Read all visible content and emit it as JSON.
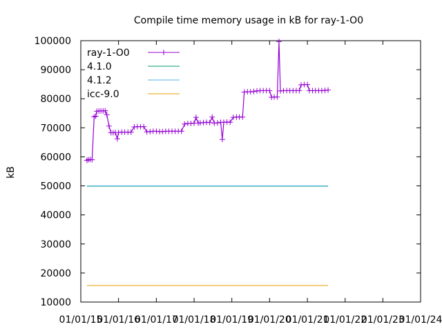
{
  "chart_data": {
    "type": "line",
    "title": "Compile time memory usage in kB for ray-1-O0",
    "xlabel": "",
    "ylabel": "kB",
    "ylim": [
      10000,
      100000
    ],
    "yticks": [
      10000,
      20000,
      30000,
      40000,
      50000,
      60000,
      70000,
      80000,
      90000,
      100000
    ],
    "xlim": [
      "2015-01-01",
      "2024-01-01"
    ],
    "xticks": [
      "01/01/15",
      "01/01/16",
      "01/01/17",
      "01/01/18",
      "01/01/19",
      "01/01/20",
      "01/01/21",
      "01/01/22",
      "01/01/23",
      "01/01/24"
    ],
    "grid": false,
    "legend_position": "top-left",
    "series": [
      {
        "name": "ray-1-O0",
        "color": "#9400d3",
        "marker": "plus",
        "points": [
          [
            "2015-03-01",
            58800
          ],
          [
            "2015-03-15",
            59000
          ],
          [
            "2015-04-01",
            59100
          ],
          [
            "2015-04-20",
            59000
          ],
          [
            "2015-05-10",
            73800
          ],
          [
            "2015-05-25",
            74000
          ],
          [
            "2015-06-05",
            75700
          ],
          [
            "2015-06-25",
            75800
          ],
          [
            "2015-07-15",
            75800
          ],
          [
            "2015-08-05",
            75800
          ],
          [
            "2015-08-25",
            75900
          ],
          [
            "2015-09-10",
            74500
          ],
          [
            "2015-10-01",
            70600
          ],
          [
            "2015-10-20",
            68300
          ],
          [
            "2015-11-10",
            68300
          ],
          [
            "2015-12-01",
            68400
          ],
          [
            "2015-12-20",
            66200
          ],
          [
            "2016-01-01",
            68400
          ],
          [
            "2016-02-01",
            68500
          ],
          [
            "2016-03-01",
            68500
          ],
          [
            "2016-04-01",
            68500
          ],
          [
            "2016-05-01",
            68500
          ],
          [
            "2016-06-01",
            70300
          ],
          [
            "2016-07-01",
            70400
          ],
          [
            "2016-08-01",
            70400
          ],
          [
            "2016-09-01",
            70400
          ],
          [
            "2016-10-01",
            68600
          ],
          [
            "2016-11-01",
            68700
          ],
          [
            "2016-12-01",
            68800
          ],
          [
            "2017-01-01",
            68800
          ],
          [
            "2017-02-01",
            68700
          ],
          [
            "2017-03-01",
            68700
          ],
          [
            "2017-04-01",
            68800
          ],
          [
            "2017-05-01",
            68800
          ],
          [
            "2017-06-01",
            68800
          ],
          [
            "2017-07-01",
            68800
          ],
          [
            "2017-08-01",
            68800
          ],
          [
            "2017-09-01",
            68800
          ],
          [
            "2017-10-01",
            71300
          ],
          [
            "2017-11-01",
            71500
          ],
          [
            "2017-12-01",
            71500
          ],
          [
            "2018-01-01",
            71600
          ],
          [
            "2018-01-20",
            73600
          ],
          [
            "2018-02-10",
            71600
          ],
          [
            "2018-03-01",
            71700
          ],
          [
            "2018-04-01",
            71800
          ],
          [
            "2018-05-01",
            71900
          ],
          [
            "2018-06-01",
            71800
          ],
          [
            "2018-06-25",
            73700
          ],
          [
            "2018-07-15",
            71600
          ],
          [
            "2018-08-15",
            71700
          ],
          [
            "2018-09-15",
            71900
          ],
          [
            "2018-10-01",
            66000
          ],
          [
            "2018-10-15",
            71900
          ],
          [
            "2018-11-15",
            72000
          ],
          [
            "2018-12-15",
            71900
          ],
          [
            "2019-01-15",
            73600
          ],
          [
            "2019-02-15",
            73700
          ],
          [
            "2019-03-15",
            73700
          ],
          [
            "2019-04-15",
            73700
          ],
          [
            "2019-05-01",
            82300
          ],
          [
            "2019-06-01",
            82400
          ],
          [
            "2019-07-01",
            82400
          ],
          [
            "2019-08-01",
            82500
          ],
          [
            "2019-09-01",
            82700
          ],
          [
            "2019-10-01",
            82800
          ],
          [
            "2019-11-01",
            82800
          ],
          [
            "2019-12-01",
            82800
          ],
          [
            "2020-01-01",
            82800
          ],
          [
            "2020-01-20",
            80500
          ],
          [
            "2020-02-15",
            80600
          ],
          [
            "2020-03-15",
            80600
          ],
          [
            "2020-04-01",
            99700
          ],
          [
            "2020-04-15",
            82700
          ],
          [
            "2020-05-15",
            82800
          ],
          [
            "2020-06-15",
            82800
          ],
          [
            "2020-07-15",
            82800
          ],
          [
            "2020-08-15",
            82800
          ],
          [
            "2020-09-15",
            82800
          ],
          [
            "2020-10-15",
            82800
          ],
          [
            "2020-11-01",
            84800
          ],
          [
            "2020-12-01",
            84900
          ],
          [
            "2021-01-01",
            84900
          ],
          [
            "2021-01-20",
            82800
          ],
          [
            "2021-02-20",
            82800
          ],
          [
            "2021-03-20",
            82800
          ],
          [
            "2021-04-20",
            82800
          ],
          [
            "2021-05-20",
            82800
          ],
          [
            "2021-06-20",
            82900
          ],
          [
            "2021-07-20",
            83000
          ]
        ]
      },
      {
        "name": "4.1.0",
        "color": "#009e73",
        "marker": "none",
        "points": [
          [
            "2015-03-01",
            49900
          ],
          [
            "2021-07-20",
            49900
          ]
        ]
      },
      {
        "name": "4.1.2",
        "color": "#56b4e9",
        "marker": "none",
        "points": [
          [
            "2015-03-01",
            50000
          ],
          [
            "2021-07-20",
            50000
          ]
        ]
      },
      {
        "name": "icc-9.0",
        "color": "#e69f00",
        "marker": "none",
        "points": [
          [
            "2015-03-01",
            15700
          ],
          [
            "2021-07-20",
            15700
          ]
        ]
      }
    ]
  }
}
